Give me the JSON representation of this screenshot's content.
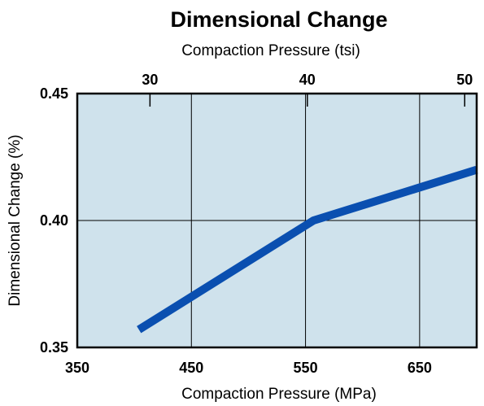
{
  "chart_data": {
    "type": "line",
    "title": "Dimensional Change",
    "top_axis_label": "Compaction Pressure (tsi)",
    "xlabel": "Compaction Pressure (MPa)",
    "ylabel": "Dimensional Change (%)",
    "xlim": [
      350,
      700
    ],
    "ylim": [
      0.35,
      0.45
    ],
    "x_ticks": [
      350,
      450,
      550,
      650
    ],
    "x_tick_labels": [
      "350",
      "450",
      "550",
      "650"
    ],
    "y_ticks": [
      0.35,
      0.4,
      0.45
    ],
    "y_tick_labels": [
      "0.35",
      "0.40",
      "0.45"
    ],
    "top_ticks_mpa": [
      413.7,
      551.6,
      689.5
    ],
    "top_tick_labels": [
      "30",
      "40",
      "50"
    ],
    "grid": true,
    "colors": {
      "plot_bg": "#cfe2ec",
      "line": "#0a4fb0",
      "frame": "#000000"
    },
    "series": [
      {
        "x": [
          404,
          557,
          700
        ],
        "y": [
          0.357,
          0.4,
          0.42
        ]
      }
    ]
  }
}
